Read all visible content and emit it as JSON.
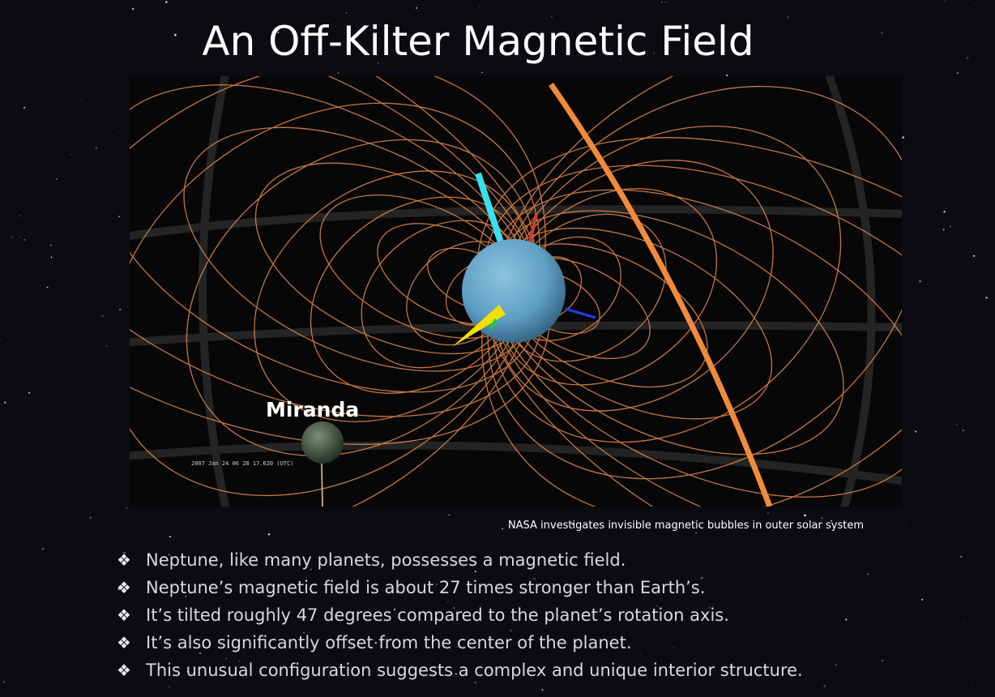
{
  "slide": {
    "title": "An Off-Kilter Magnetic Field"
  },
  "figure": {
    "moon_label": "Miranda",
    "timestamp": "2007 Jan 24 06 28 17.620 (UTC)",
    "caption": "NASA investigates invisible magnetic bubbles in outer solar system",
    "colors": {
      "field_lines": "#e88a4a",
      "planet": "#5f9fc4",
      "axis_cyan": "#39e0ec",
      "axis_yellow": "#f2e000",
      "axis_blue": "#1f3cff",
      "axis_red": "#d23a2a",
      "axis_green": "#21c93a"
    }
  },
  "bullets": {
    "marker": "❖",
    "items": [
      "Neptune, like many planets, possesses a magnetic field.",
      "Neptune’s magnetic field is about 27 times stronger than Earth’s.",
      "It’s tilted roughly 47 degrees compared to the planet’s rotation axis.",
      "It’s also significantly offset from the center of the planet.",
      "This unusual configuration suggests a complex and unique interior structure."
    ]
  }
}
